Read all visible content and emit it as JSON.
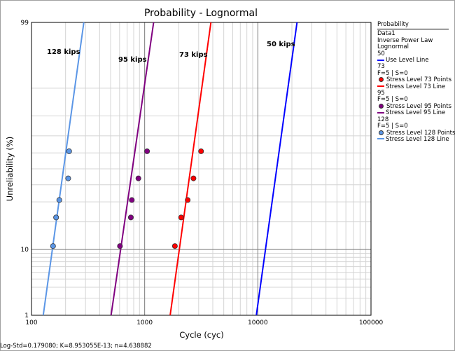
{
  "chart_data": {
    "type": "scatter",
    "title": "Probability - Lognormal",
    "xlabel": "Cycle (cyc)",
    "ylabel": "Unreliability (%)",
    "x_scale": "log",
    "y_scale": "lognormal-probability",
    "xlim": [
      100,
      100000
    ],
    "ylim": [
      1,
      99
    ],
    "x_tick_labels": [
      "100",
      "1000",
      "10000",
      "100000"
    ],
    "y_tick_labels": [
      "1",
      "10",
      "99"
    ],
    "grid": true,
    "legend_position": "right",
    "annotations": [
      "128 kips",
      "95 kips",
      "73 kips",
      "50 kips"
    ],
    "series": [
      {
        "name": "Stress Level 128",
        "color": "#5b96e6",
        "points": [
          [
            155,
            11
          ],
          [
            165,
            22
          ],
          [
            176,
            31
          ],
          [
            211,
            44
          ],
          [
            215,
            61
          ]
        ],
        "line": [
          [
            127,
            1
          ],
          [
            290,
            99
          ]
        ]
      },
      {
        "name": "Stress Level 95",
        "color": "#800080",
        "points": [
          [
            605,
            11
          ],
          [
            755,
            22
          ],
          [
            770,
            31
          ],
          [
            880,
            44
          ],
          [
            1050,
            61
          ]
        ],
        "line": [
          [
            505,
            1
          ],
          [
            1200,
            99
          ]
        ]
      },
      {
        "name": "Stress Level 73",
        "color": "#ff0000",
        "points": [
          [
            1850,
            11
          ],
          [
            2100,
            22
          ],
          [
            2400,
            31
          ],
          [
            2700,
            44
          ],
          [
            3150,
            61
          ]
        ],
        "line": [
          [
            1680,
            1
          ],
          [
            3850,
            99
          ]
        ]
      },
      {
        "name": "Use Level Line",
        "color": "#0000ff",
        "points": [],
        "line": [
          [
            9700,
            1
          ],
          [
            22200,
            99
          ]
        ]
      }
    ]
  },
  "legend": {
    "title": "Probability",
    "lines": [
      {
        "text": "Data1",
        "kind": "text"
      },
      {
        "text": "Inverse Power Law",
        "kind": "text"
      },
      {
        "text": "Lognormal",
        "kind": "text"
      },
      {
        "text": "50",
        "kind": "text"
      },
      {
        "text": "Use Level Line",
        "kind": "line",
        "color": "#0000ff"
      },
      {
        "text": "73",
        "kind": "text"
      },
      {
        "text": "F=5 | S=0",
        "kind": "text"
      },
      {
        "text": "Stress Level 73 Points",
        "kind": "point",
        "color": "#ff0000"
      },
      {
        "text": "Stress Level 73 Line",
        "kind": "line",
        "color": "#ff0000"
      },
      {
        "text": "95",
        "kind": "text"
      },
      {
        "text": "F=5 | S=0",
        "kind": "text"
      },
      {
        "text": "Stress Level 95 Points",
        "kind": "point",
        "color": "#800080"
      },
      {
        "text": "Stress Level 95 Line",
        "kind": "line",
        "color": "#800080"
      },
      {
        "text": "128",
        "kind": "text"
      },
      {
        "text": "F=5 | S=0",
        "kind": "text"
      },
      {
        "text": "Stress Level 128 Points",
        "kind": "point",
        "color": "#5b96e6"
      },
      {
        "text": "Stress Level 128 Line",
        "kind": "line",
        "color": "#5b96e6"
      }
    ]
  },
  "status": "Log-Std=0.179080; K=8.953055E-13; n=4.638882"
}
